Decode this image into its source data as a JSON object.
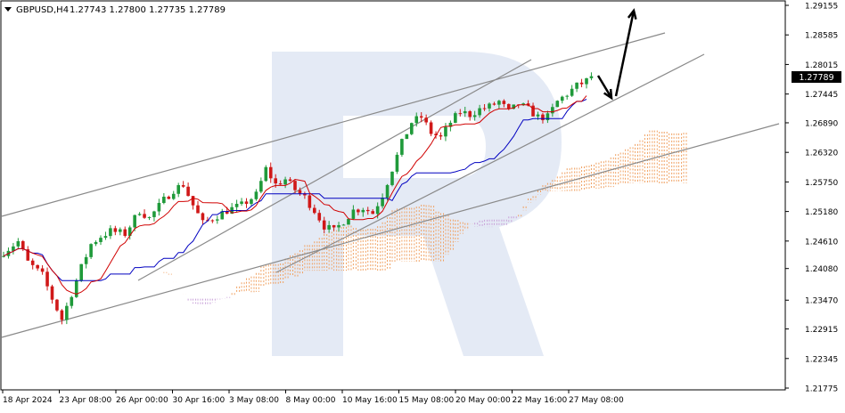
{
  "header": {
    "symbol_timeframe": "GBPUSD,H4",
    "ohlc": "1.27743 1.27800 1.27735 1.27789"
  },
  "price_tag": "1.27789",
  "colors": {
    "bull_candle": "#1f9a3a",
    "bear_candle": "#d01818",
    "tenkan": "#d00000",
    "kijun": "#0000c0",
    "cloud_bull": "#f0a060",
    "cloud_bear": "#c8a0d8",
    "channel": "#8a8a8a",
    "arrow": "#000000",
    "watermark": "#dfe6f3"
  },
  "chart_data": {
    "type": "candlestick",
    "instrument": "GBPUSD",
    "timeframe": "H4",
    "title": "GBPUSD,H4",
    "ylim": [
      1.2755,
      1.292
    ],
    "y_ticks": [
      "1.29155",
      "1.28585",
      "1.28015",
      "1.27445",
      "1.26890",
      "1.26320",
      "1.25750",
      "1.25180",
      "1.24610",
      "1.24080",
      "1.23470",
      "1.22915",
      "1.22345",
      "1.21775"
    ],
    "x_ticks": [
      "18 Apr 2024",
      "23 Apr 08:00",
      "26 Apr 00:00",
      "30 Apr 16:00",
      "3 May 08:00",
      "8 May 00:00",
      "10 May 16:00",
      "15 May 08:00",
      "20 May 00:00",
      "22 May 16:00",
      "27 May 08:00"
    ],
    "last_close": 1.27789,
    "close_path": [
      [
        0,
        1.244
      ],
      [
        3,
        1.246
      ],
      [
        5,
        1.242
      ],
      [
        8,
        1.2395
      ],
      [
        10,
        1.235
      ],
      [
        12,
        1.231
      ],
      [
        14,
        1.236
      ],
      [
        16,
        1.241
      ],
      [
        18,
        1.2455
      ],
      [
        20,
        1.247
      ],
      [
        22,
        1.248
      ],
      [
        25,
        1.2475
      ],
      [
        28,
        1.252
      ],
      [
        30,
        1.2505
      ],
      [
        33,
        1.254
      ],
      [
        35,
        1.256
      ],
      [
        37,
        1.257
      ],
      [
        39,
        1.253
      ],
      [
        41,
        1.2495
      ],
      [
        43,
        1.2505
      ],
      [
        46,
        1.252
      ],
      [
        49,
        1.253
      ],
      [
        52,
        1.255
      ],
      [
        54,
        1.26
      ],
      [
        56,
        1.257
      ],
      [
        58,
        1.258
      ],
      [
        60,
        1.256
      ],
      [
        62,
        1.2545
      ],
      [
        64,
        1.252
      ],
      [
        66,
        1.249
      ],
      [
        68,
        1.248
      ],
      [
        70,
        1.25
      ],
      [
        72,
        1.252
      ],
      [
        74,
        1.2525
      ],
      [
        76,
        1.2515
      ],
      [
        78,
        1.255
      ],
      [
        80,
        1.26
      ],
      [
        82,
        1.265
      ],
      [
        84,
        1.269
      ],
      [
        86,
        1.27
      ],
      [
        88,
        1.267
      ],
      [
        90,
        1.266
      ],
      [
        92,
        1.269
      ],
      [
        94,
        1.271
      ],
      [
        96,
        1.2705
      ],
      [
        98,
        1.2715
      ],
      [
        100,
        1.272
      ],
      [
        102,
        1.273
      ],
      [
        104,
        1.271
      ],
      [
        106,
        1.2725
      ],
      [
        108,
        1.2715
      ],
      [
        110,
        1.27
      ],
      [
        112,
        1.27
      ],
      [
        114,
        1.273
      ],
      [
        116,
        1.2745
      ],
      [
        118,
        1.276
      ],
      [
        120,
        1.277
      ],
      [
        121,
        1.27789
      ]
    ]
  }
}
